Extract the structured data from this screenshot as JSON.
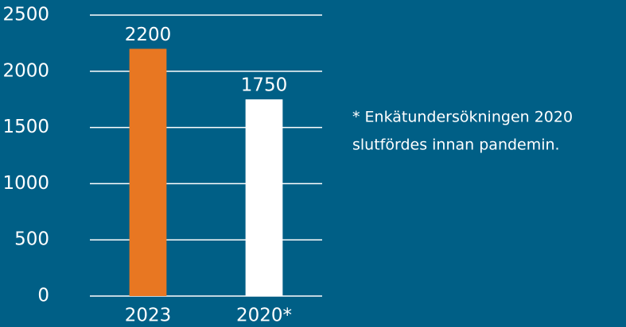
{
  "chart_data": {
    "type": "bar",
    "categories": [
      "2023",
      "2020*"
    ],
    "values": [
      2200,
      1750
    ],
    "colors": [
      "#e87722",
      "#ffffff"
    ],
    "ylim": [
      0,
      2500
    ],
    "yticks": [
      0,
      500,
      1000,
      1500,
      2000,
      2500
    ],
    "grid": true,
    "annotation": [
      "* Enkätundersökningen 2020",
      "slutfördes innan pandemin."
    ]
  }
}
